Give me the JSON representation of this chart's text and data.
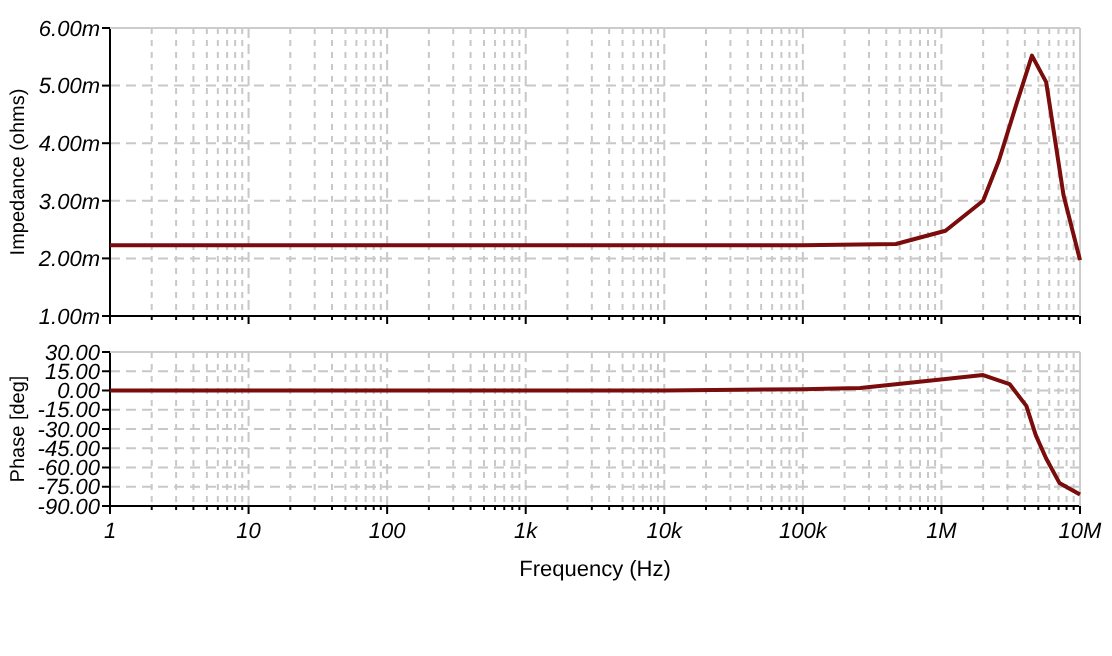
{
  "chart_data": [
    {
      "type": "line",
      "ylabel": "Impedance (ohms)",
      "log": "x",
      "grid": true,
      "tick_labels": "y",
      "xlim": [
        1,
        10000000
      ],
      "xticks": [
        {
          "value": 1,
          "label": null
        },
        {
          "value": 10,
          "label": null
        },
        {
          "value": 100,
          "label": null
        },
        {
          "value": 1000,
          "label": null
        },
        {
          "value": 10000,
          "label": null
        },
        {
          "value": 100000,
          "label": null
        },
        {
          "value": 1000000,
          "label": null
        },
        {
          "value": 10000000,
          "label": null
        }
      ],
      "ylim": [
        1,
        6
      ],
      "yticks": [
        {
          "value": 1,
          "label": "1.00m"
        },
        {
          "value": 2,
          "label": "2.00m"
        },
        {
          "value": 3,
          "label": "3.00m"
        },
        {
          "value": 4,
          "label": "4.00m"
        },
        {
          "value": 5,
          "label": "5.00m"
        },
        {
          "value": 6,
          "label": "6.00m"
        }
      ],
      "series": [
        {
          "color": "#7a0c0c",
          "x": [
            1,
            100000,
            470000,
            1070000,
            2000000,
            2600000,
            3500000,
            4500000,
            5700000,
            7600000,
            10000000
          ],
          "values": [
            2.23,
            2.23,
            2.25,
            2.48,
            3.0,
            3.7,
            4.7,
            5.52,
            5.06,
            3.1,
            1.97
          ]
        }
      ]
    },
    {
      "type": "line",
      "xlabel": "Frequency (Hz)",
      "ylabel": "Phase [deg]",
      "log": "x",
      "grid": true,
      "xlim": [
        1,
        10000000
      ],
      "xticks": [
        {
          "value": 1,
          "label": "1"
        },
        {
          "value": 10,
          "label": "10"
        },
        {
          "value": 100,
          "label": "100"
        },
        {
          "value": 1000,
          "label": "1k"
        },
        {
          "value": 10000,
          "label": "10k"
        },
        {
          "value": 100000,
          "label": "100k"
        },
        {
          "value": 1000000,
          "label": "1M"
        },
        {
          "value": 10000000,
          "label": "10M"
        }
      ],
      "ylim": [
        -90,
        30
      ],
      "yticks": [
        {
          "value": 30,
          "label": "30.00"
        },
        {
          "value": 15,
          "label": "15.00"
        },
        {
          "value": 0,
          "label": "0.00"
        },
        {
          "value": -15,
          "label": "-15.00"
        },
        {
          "value": -30,
          "label": "-30.00"
        },
        {
          "value": -45,
          "label": "-45.00"
        },
        {
          "value": -60,
          "label": "-60.00"
        },
        {
          "value": -75,
          "label": "-75.00"
        },
        {
          "value": -90,
          "label": "-90.00"
        }
      ],
      "series": [
        {
          "color": "#7a0c0c",
          "x": [
            1,
            10000,
            100000,
            260000,
            1070000,
            2000000,
            3100000,
            4100000,
            4800000,
            5700000,
            7100000,
            10000000
          ],
          "values": [
            0,
            0,
            1,
            2,
            9,
            12,
            5,
            -12,
            -35,
            -53,
            -72,
            -81
          ]
        }
      ]
    }
  ]
}
